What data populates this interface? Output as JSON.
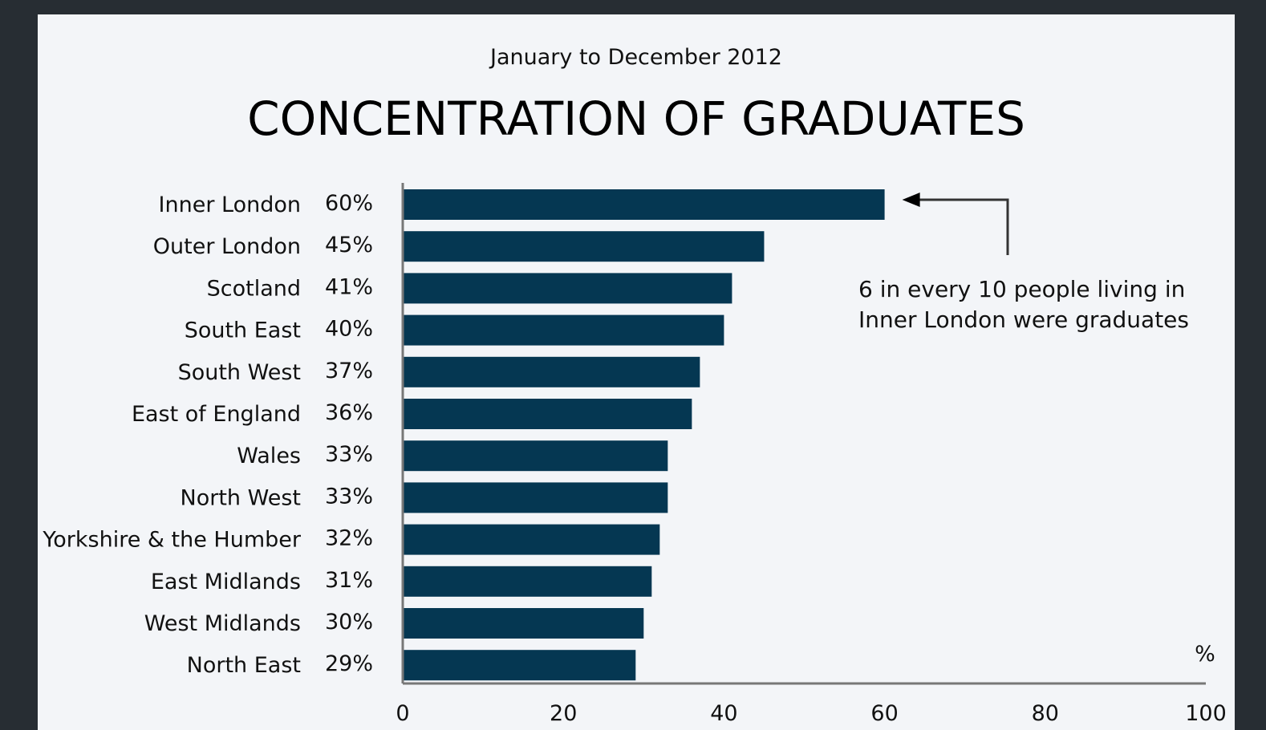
{
  "chart_data": {
    "type": "bar",
    "orientation": "horizontal",
    "subtitle": "January to December 2012",
    "title": "CONCENTRATION OF GRADUATES",
    "categories": [
      "Inner London",
      "Outer London",
      "Scotland",
      "South East",
      "South West",
      "East of England",
      "Wales",
      "North West",
      "Yorkshire & the Humber",
      "East Midlands",
      "West Midlands",
      "North East"
    ],
    "values": [
      60,
      45,
      41,
      40,
      37,
      36,
      33,
      33,
      32,
      31,
      30,
      29
    ],
    "value_labels": [
      "60%",
      "45%",
      "41%",
      "40%",
      "37%",
      "36%",
      "33%",
      "33%",
      "32%",
      "31%",
      "30%",
      "29%"
    ],
    "xlim": [
      0,
      100
    ],
    "xticks": [
      "0",
      "20",
      "40",
      "60",
      "80",
      "100"
    ],
    "unit_label": "%",
    "annotation": {
      "lines": [
        "6 in every 10 people living in",
        "Inner London were graduates"
      ],
      "points_to": "Inner London"
    },
    "grid": false,
    "bar_color": "#053752",
    "axis_color": "#777777"
  }
}
